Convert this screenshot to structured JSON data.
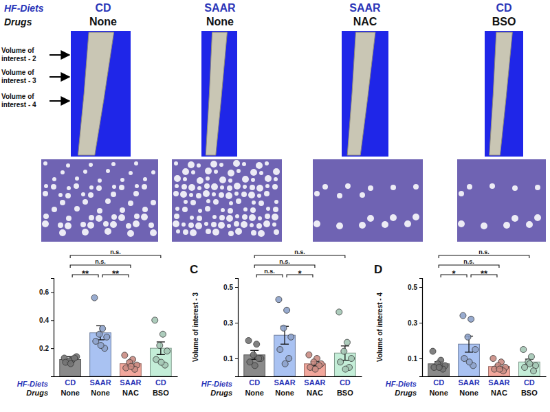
{
  "images": {
    "row_titles": [
      "HF-Diets",
      "Drugs"
    ],
    "diets": [
      "CD",
      "SAAR",
      "SAAR",
      "CD"
    ],
    "drugs": [
      "None",
      "None",
      "NAC",
      "BSO"
    ],
    "voi_labels": [
      "Volume of interest - 2",
      "Volume of interest - 3",
      "Volume of interest - 4"
    ]
  },
  "chart_data": [
    {
      "type": "bar",
      "row_titles": [
        "HF-Diets",
        "Drugs"
      ],
      "categories": [
        "CD",
        "SAAR",
        "SAAR",
        "CD"
      ],
      "drugs": [
        "None",
        "None",
        "NAC",
        "BSO"
      ],
      "values": [
        0.12,
        0.31,
        0.09,
        0.2
      ],
      "errors": [
        0.02,
        0.05,
        0.02,
        0.045
      ],
      "points": [
        [
          0.13,
          0.12,
          0.11,
          0.14,
          0.1,
          0.13,
          0.09
        ],
        [
          0.56,
          0.34,
          0.3,
          0.28,
          0.25,
          0.2,
          0.22
        ],
        [
          0.15,
          0.12,
          0.1,
          0.08,
          0.06,
          0.05,
          0.07
        ],
        [
          0.4,
          0.3,
          0.22,
          0.18,
          0.12,
          0.08,
          0.1
        ]
      ],
      "colors": [
        "#8a8a8a",
        "#a9c2f2",
        "#f2a79c",
        "#c4eed8"
      ],
      "ylim": [
        0,
        0.7
      ],
      "yticks": [
        0.2,
        0.4,
        0.6
      ],
      "comparisons": [
        {
          "groups": [
            0,
            3
          ],
          "label": "n.s."
        },
        {
          "groups": [
            0,
            2
          ],
          "label": "n.s."
        },
        {
          "groups": [
            0,
            1
          ],
          "label": "**"
        },
        {
          "groups": [
            1,
            2
          ],
          "label": "**"
        }
      ]
    },
    {
      "type": "bar",
      "panel": "C",
      "y_label": "Volume of interest - 3",
      "row_titles": [
        "HF-Diets",
        "Drugs"
      ],
      "categories": [
        "CD",
        "SAAR",
        "SAAR",
        "CD"
      ],
      "drugs": [
        "None",
        "None",
        "NAC",
        "BSO"
      ],
      "values": [
        0.12,
        0.23,
        0.07,
        0.13
      ],
      "errors": [
        0.025,
        0.05,
        0.012,
        0.04
      ],
      "points": [
        [
          0.2,
          0.18,
          0.12,
          0.1,
          0.08,
          0.1,
          0.06
        ],
        [
          0.43,
          0.37,
          0.27,
          0.22,
          0.15,
          0.1,
          0.07
        ],
        [
          0.12,
          0.1,
          0.08,
          0.07,
          0.05,
          0.06,
          0.04
        ],
        [
          0.36,
          0.19,
          0.14,
          0.1,
          0.08,
          0.05,
          0.04
        ]
      ],
      "colors": [
        "#8a8a8a",
        "#a9c2f2",
        "#f2a79c",
        "#c4eed8"
      ],
      "ylim": [
        0,
        0.55
      ],
      "yticks": [
        0.1,
        0.3,
        0.5
      ],
      "comparisons": [
        {
          "groups": [
            0,
            3
          ],
          "label": "n.s."
        },
        {
          "groups": [
            0,
            2
          ],
          "label": "n.s."
        },
        {
          "groups": [
            0,
            1
          ],
          "label": "n.s."
        },
        {
          "groups": [
            1,
            2
          ],
          "label": "*"
        }
      ]
    },
    {
      "type": "bar",
      "panel": "D",
      "y_label": "Volume of interest - 4",
      "row_titles": [
        "HF-Diets",
        "Drugs"
      ],
      "categories": [
        "CD",
        "SAAR",
        "SAAR",
        "CD"
      ],
      "drugs": [
        "None",
        "None",
        "NAC",
        "BSO"
      ],
      "values": [
        0.07,
        0.18,
        0.055,
        0.08
      ],
      "errors": [
        0.012,
        0.045,
        0.01,
        0.016
      ],
      "points": [
        [
          0.14,
          0.09,
          0.07,
          0.06,
          0.05,
          0.04,
          0.05
        ],
        [
          0.34,
          0.32,
          0.22,
          0.15,
          0.1,
          0.06,
          0.08
        ],
        [
          0.1,
          0.08,
          0.06,
          0.05,
          0.04,
          0.03,
          0.04
        ],
        [
          0.15,
          0.11,
          0.08,
          0.06,
          0.05,
          0.03,
          0.07
        ]
      ],
      "colors": [
        "#8a8a8a",
        "#a9c2f2",
        "#f2a79c",
        "#c4eed8"
      ],
      "ylim": [
        0,
        0.55
      ],
      "yticks": [
        0.1,
        0.3,
        0.5
      ],
      "comparisons": [
        {
          "groups": [
            0,
            3
          ],
          "label": "n.s."
        },
        {
          "groups": [
            0,
            2
          ],
          "label": "n.s."
        },
        {
          "groups": [
            0,
            1
          ],
          "label": "*"
        },
        {
          "groups": [
            1,
            2
          ],
          "label": "**"
        }
      ]
    }
  ]
}
